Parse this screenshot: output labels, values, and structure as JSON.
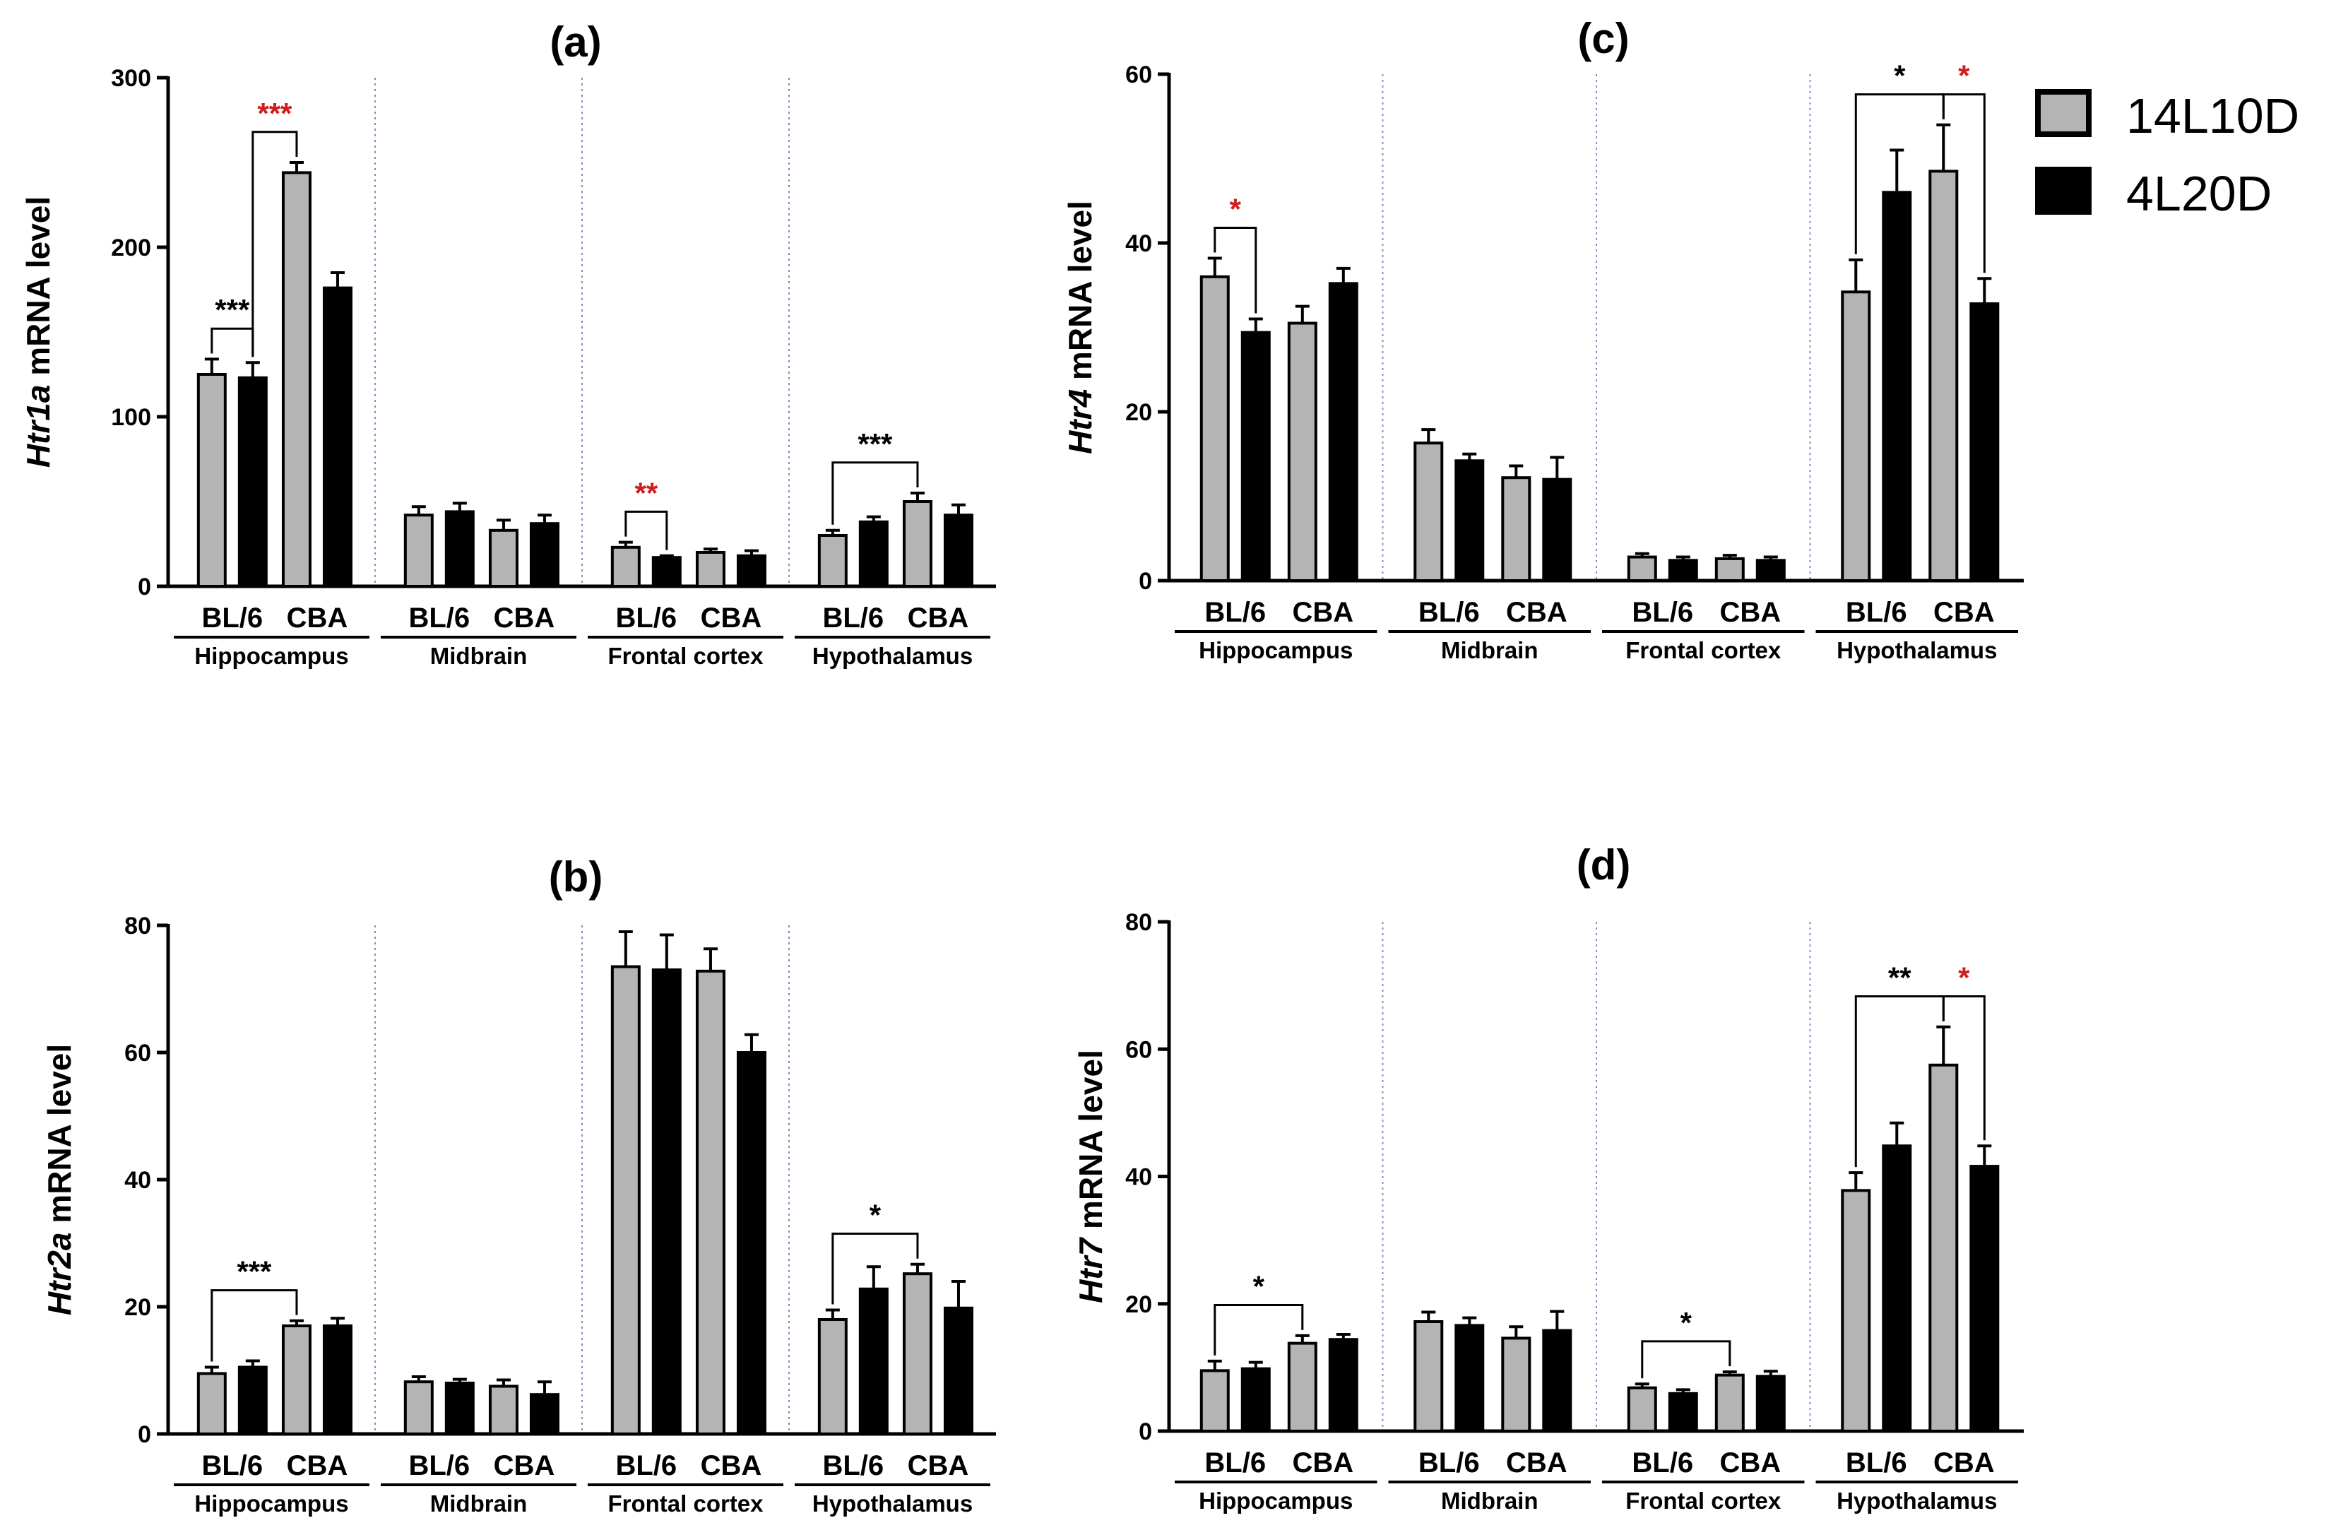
{
  "legend": [
    {
      "label": "14L10D",
      "color": "#b4b4b4"
    },
    {
      "label": "4L20D",
      "color": "#000000"
    }
  ],
  "colors": {
    "star_black": "#000000",
    "star_red": "#d01c1c",
    "divider": "#7a8fbf"
  },
  "chart_data": [
    {
      "id": "a",
      "type": "bar",
      "title": "(a)",
      "ylabel_gene": "Htr1a",
      "ylabel_rest": " mRNA level",
      "ylim": [
        0,
        300
      ],
      "yticks": [
        "0",
        "100",
        "200",
        "300"
      ],
      "groups": [
        {
          "region": "Hippocampus",
          "strains": [
            "BL/6",
            "CBA"
          ]
        },
        {
          "region": "Midbrain",
          "strains": [
            "BL/6",
            "CBA"
          ]
        },
        {
          "region": "Frontal cortex",
          "strains": [
            "BL/6",
            "CBA"
          ]
        },
        {
          "region": "Hypothalamus",
          "strains": [
            "BL/6",
            "CBA"
          ]
        }
      ],
      "series": [
        {
          "name": "14L10D",
          "values": [
            125,
            244,
            42,
            33,
            23,
            20,
            30,
            50
          ],
          "errors": [
            9,
            6,
            5,
            6,
            3,
            2,
            3,
            5
          ]
        },
        {
          "name": "4L20D",
          "values": [
            123,
            176,
            44,
            37,
            17,
            18,
            38,
            42
          ],
          "errors": [
            9,
            9,
            5,
            5,
            1,
            3,
            3,
            6
          ]
        }
      ],
      "annotations": [
        {
          "from": 0,
          "to": 1,
          "label": "***",
          "color": "black"
        },
        {
          "from": 1,
          "to": 2,
          "label": "***",
          "color": "red"
        },
        {
          "from": 8,
          "to": 9,
          "label": "**",
          "color": "red"
        },
        {
          "from": 12,
          "to": 14,
          "label": "***",
          "color": "black"
        }
      ]
    },
    {
      "id": "b",
      "type": "bar",
      "title": "(b)",
      "ylabel_gene": "Htr2a",
      "ylabel_rest": " mRNA level",
      "ylim": [
        0,
        80
      ],
      "yticks": [
        "0",
        "20",
        "40",
        "60",
        "80"
      ],
      "groups": [
        {
          "region": "Hippocampus",
          "strains": [
            "BL/6",
            "CBA"
          ]
        },
        {
          "region": "Midbrain",
          "strains": [
            "BL/6",
            "CBA"
          ]
        },
        {
          "region": "Frontal cortex",
          "strains": [
            "BL/6",
            "CBA"
          ]
        },
        {
          "region": "Hypothalamus",
          "strains": [
            "BL/6",
            "CBA"
          ]
        }
      ],
      "series": [
        {
          "name": "14L10D",
          "values": [
            9.5,
            17,
            8.2,
            7.5,
            73.5,
            72.8,
            18,
            25.2
          ],
          "errors": [
            1.0,
            0.8,
            0.8,
            1.0,
            5.5,
            3.5,
            1.5,
            1.5
          ]
        },
        {
          "name": "4L20D",
          "values": [
            10.5,
            17,
            8,
            6.2,
            73,
            60,
            22.8,
            19.8
          ],
          "errors": [
            1.0,
            1.2,
            0.6,
            2.0,
            5.5,
            2.8,
            3.5,
            4.2
          ]
        }
      ],
      "annotations": [
        {
          "from": 0,
          "to": 2,
          "label": "***",
          "color": "black"
        },
        {
          "from": 12,
          "to": 14,
          "label": "*",
          "color": "black"
        }
      ]
    },
    {
      "id": "c",
      "type": "bar",
      "title": "(c)",
      "ylabel_gene": "Htr4",
      "ylabel_rest": " mRNA level",
      "ylim": [
        0,
        60
      ],
      "yticks": [
        "0",
        "20",
        "40",
        "60"
      ],
      "groups": [
        {
          "region": "Hippocampus",
          "strains": [
            "BL/6",
            "CBA"
          ]
        },
        {
          "region": "Midbrain",
          "strains": [
            "BL/6",
            "CBA"
          ]
        },
        {
          "region": "Frontal cortex",
          "strains": [
            "BL/6",
            "CBA"
          ]
        },
        {
          "region": "Hypothalamus",
          "strains": [
            "BL/6",
            "CBA"
          ]
        }
      ],
      "series": [
        {
          "name": "14L10D",
          "values": [
            36,
            30.5,
            16.3,
            12.2,
            2.8,
            2.6,
            34.2,
            48.5
          ],
          "errors": [
            2.2,
            2.0,
            1.6,
            1.4,
            0.4,
            0.4,
            3.8,
            5.5
          ]
        },
        {
          "name": "4L20D",
          "values": [
            29.4,
            35.2,
            14.2,
            12,
            2.4,
            2.4,
            46,
            32.8
          ],
          "errors": [
            1.6,
            1.8,
            0.8,
            2.6,
            0.4,
            0.4,
            5.0,
            3.0
          ]
        }
      ],
      "annotations": [
        {
          "from": 0,
          "to": 1,
          "label": "*",
          "color": "red"
        },
        {
          "from": 12,
          "to": 14,
          "label": "*",
          "color": "black"
        },
        {
          "from": 14,
          "to": 15,
          "label": "*",
          "color": "red"
        }
      ]
    },
    {
      "id": "d",
      "type": "bar",
      "title": "(d)",
      "ylabel_gene": "Htr7",
      "ylabel_rest": " mRNA level",
      "ylim": [
        0,
        80
      ],
      "yticks": [
        "0",
        "20",
        "40",
        "60",
        "80"
      ],
      "groups": [
        {
          "region": "Hippocampus",
          "strains": [
            "BL/6",
            "CBA"
          ]
        },
        {
          "region": "Midbrain",
          "strains": [
            "BL/6",
            "CBA"
          ]
        },
        {
          "region": "Frontal cortex",
          "strains": [
            "BL/6",
            "CBA"
          ]
        },
        {
          "region": "Hypothalamus",
          "strains": [
            "BL/6",
            "CBA"
          ]
        }
      ],
      "series": [
        {
          "name": "14L10D",
          "values": [
            9.5,
            13.8,
            17.2,
            14.6,
            6.8,
            8.8,
            37.8,
            57.5
          ],
          "errors": [
            1.5,
            1.2,
            1.5,
            1.8,
            0.6,
            0.5,
            2.8,
            6.0
          ]
        },
        {
          "name": "4L20D",
          "values": [
            9.8,
            14.4,
            16.6,
            15.8,
            5.9,
            8.6,
            44.8,
            41.6
          ],
          "errors": [
            1.0,
            0.8,
            1.2,
            3.0,
            0.6,
            0.8,
            3.6,
            3.2
          ]
        }
      ],
      "annotations": [
        {
          "from": 0,
          "to": 2,
          "label": "*",
          "color": "black"
        },
        {
          "from": 8,
          "to": 10,
          "label": "*",
          "color": "black"
        },
        {
          "from": 12,
          "to": 14,
          "label": "**",
          "color": "black"
        },
        {
          "from": 14,
          "to": 15,
          "label": "*",
          "color": "red"
        }
      ]
    }
  ]
}
